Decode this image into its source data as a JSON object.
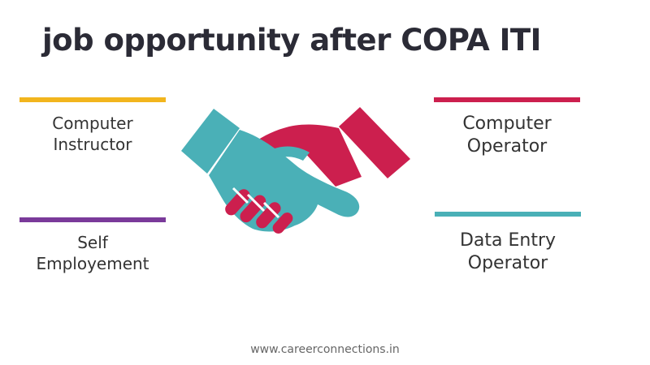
{
  "title": "job opportunity after COPA ITI",
  "colors": {
    "yellow": "#f2b51d",
    "purple": "#7a3a9a",
    "crimson": "#cc1f4e",
    "teal": "#4ab0b7"
  },
  "left_items": [
    {
      "line1": "Computer",
      "line2": "Instructor",
      "accent": "yellow"
    },
    {
      "line1": "Self",
      "line2": "Employement",
      "accent": "purple"
    }
  ],
  "right_items": [
    {
      "line1": "Computer",
      "line2": "Operator",
      "accent": "crimson"
    },
    {
      "line1": "Data Entry",
      "line2": "Operator",
      "accent": "teal"
    }
  ],
  "center_icon": "handshake-icon",
  "footer": "www.careerconnections.in"
}
